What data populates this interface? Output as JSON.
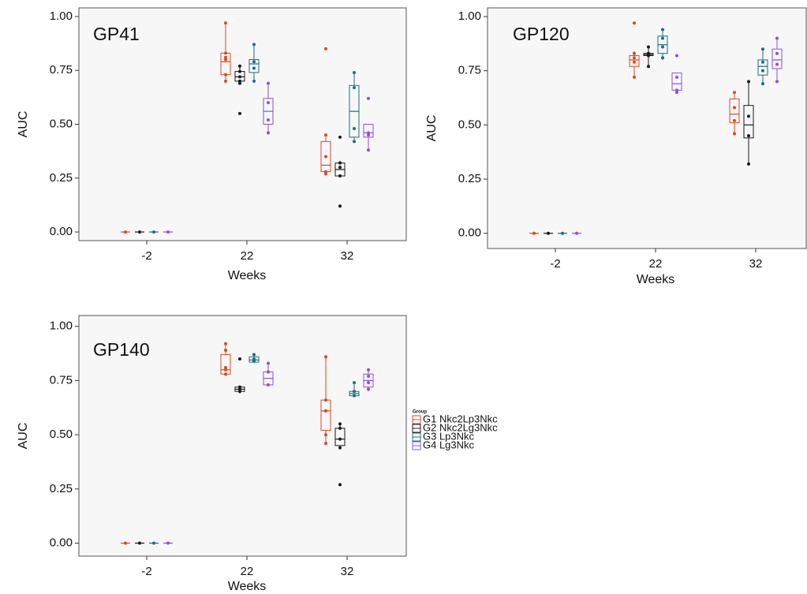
{
  "chart_data": [
    {
      "type": "box",
      "title": "GP41",
      "x_label": "Weeks",
      "y_label": "AUC",
      "categories": [
        "-2",
        "22",
        "32"
      ],
      "ylim": [
        -0.04,
        1.04
      ],
      "yticks": [
        {
          "value": 0,
          "label": "0.00"
        },
        {
          "value": 0.25,
          "label": "0.25"
        },
        {
          "value": 0.5,
          "label": "0.50"
        },
        {
          "value": 0.75,
          "label": "0.75"
        },
        {
          "value": 1,
          "label": "1.00"
        }
      ],
      "series": [
        {
          "name": "G1 Nkc2Lp3Nkc",
          "color": "#e0461f",
          "values": [
            {
              "min": 0,
              "q1": 0,
              "median": 0,
              "q3": 0,
              "max": 0,
              "points": [
                0
              ]
            },
            {
              "min": 0.69,
              "q1": 0.73,
              "median": 0.79,
              "q3": 0.83,
              "max": 0.97,
              "points": [
                0.97,
                0.83,
                0.81,
                0.8,
                0.73,
                0.7
              ]
            },
            {
              "min": 0.27,
              "q1": 0.28,
              "median": 0.31,
              "q3": 0.42,
              "max": 0.45,
              "points": [
                0.85,
                0.45,
                0.35,
                0.28,
                0.27
              ]
            }
          ]
        },
        {
          "name": "G2 Nkc2Lg3Nkc",
          "color": "#1a1a1a",
          "values": [
            {
              "min": 0,
              "q1": 0,
              "median": 0,
              "q3": 0,
              "max": 0,
              "points": [
                0
              ]
            },
            {
              "min": 0.69,
              "q1": 0.7,
              "median": 0.72,
              "q3": 0.745,
              "max": 0.77,
              "points": [
                0.77,
                0.745,
                0.72,
                0.7,
                0.69,
                0.55
              ]
            },
            {
              "min": 0.26,
              "q1": 0.26,
              "median": 0.29,
              "q3": 0.32,
              "max": 0.33,
              "points": [
                0.44,
                0.32,
                0.3,
                0.26,
                0.12
              ]
            }
          ]
        },
        {
          "name": "G3 Lp3Nkc",
          "color": "#1a6f80",
          "values": [
            {
              "min": 0,
              "q1": 0,
              "median": 0,
              "q3": 0,
              "max": 0,
              "points": [
                0
              ]
            },
            {
              "min": 0.7,
              "q1": 0.74,
              "median": 0.78,
              "q3": 0.8,
              "max": 0.87,
              "points": [
                0.87,
                0.79,
                0.76,
                0.7
              ]
            },
            {
              "min": 0.42,
              "q1": 0.44,
              "median": 0.56,
              "q3": 0.68,
              "max": 0.74,
              "points": [
                0.74,
                0.67,
                0.48,
                0.42
              ]
            }
          ]
        },
        {
          "name": "G4 Lg3Nkc",
          "color": "#8b4fe0",
          "values": [
            {
              "min": 0,
              "q1": 0,
              "median": 0,
              "q3": 0,
              "max": 0,
              "points": [
                0
              ]
            },
            {
              "min": 0.46,
              "q1": 0.5,
              "median": 0.56,
              "q3": 0.62,
              "max": 0.69,
              "points": [
                0.69,
                0.6,
                0.52,
                0.46
              ]
            },
            {
              "min": 0.38,
              "q1": 0.44,
              "median": 0.46,
              "q3": 0.5,
              "max": 0.5,
              "points": [
                0.62,
                0.46,
                0.45,
                0.38
              ]
            }
          ]
        }
      ]
    },
    {
      "type": "box",
      "title": "GP120",
      "x_label": "Weeks",
      "y_label": "AUC",
      "categories": [
        "-2",
        "22",
        "32"
      ],
      "ylim": [
        -0.07,
        1.04
      ],
      "yticks": [
        {
          "value": 0,
          "label": "0.00"
        },
        {
          "value": 0.25,
          "label": "0.25"
        },
        {
          "value": 0.5,
          "label": "0.50"
        },
        {
          "value": 0.75,
          "label": "0.75"
        },
        {
          "value": 1,
          "label": "1.00"
        }
      ],
      "series": [
        {
          "name": "G1 Nkc2Lp3Nkc",
          "color": "#e0461f",
          "values": [
            {
              "min": 0,
              "q1": 0,
              "median": 0,
              "q3": 0,
              "max": 0,
              "points": [
                0
              ]
            },
            {
              "min": 0.72,
              "q1": 0.77,
              "median": 0.8,
              "q3": 0.82,
              "max": 0.84,
              "points": [
                0.97,
                0.83,
                0.81,
                0.79,
                0.72
              ]
            },
            {
              "min": 0.45,
              "q1": 0.51,
              "median": 0.55,
              "q3": 0.62,
              "max": 0.65,
              "points": [
                0.65,
                0.58,
                0.52,
                0.46
              ]
            }
          ]
        },
        {
          "name": "G2 Nkc2Lg3Nkc",
          "color": "#1a1a1a",
          "values": [
            {
              "min": 0,
              "q1": 0,
              "median": 0,
              "q3": 0,
              "max": 0,
              "points": [
                0
              ]
            },
            {
              "min": 0.77,
              "q1": 0.82,
              "median": 0.825,
              "q3": 0.83,
              "max": 0.86,
              "points": [
                0.86,
                0.83,
                0.82,
                0.77
              ]
            },
            {
              "min": 0.32,
              "q1": 0.44,
              "median": 0.5,
              "q3": 0.59,
              "max": 0.7,
              "points": [
                0.7,
                0.54,
                0.45,
                0.32
              ]
            }
          ]
        },
        {
          "name": "G3 Lp3Nkc",
          "color": "#1a6f80",
          "values": [
            {
              "min": 0,
              "q1": 0,
              "median": 0,
              "q3": 0,
              "max": 0,
              "points": [
                0
              ]
            },
            {
              "min": 0.8,
              "q1": 0.83,
              "median": 0.87,
              "q3": 0.91,
              "max": 0.94,
              "points": [
                0.94,
                0.9,
                0.86,
                0.81
              ]
            },
            {
              "min": 0.69,
              "q1": 0.73,
              "median": 0.77,
              "q3": 0.8,
              "max": 0.85,
              "points": [
                0.85,
                0.79,
                0.75,
                0.69
              ]
            }
          ]
        },
        {
          "name": "G4 Lg3Nkc",
          "color": "#8b4fe0",
          "values": [
            {
              "min": 0,
              "q1": 0,
              "median": 0,
              "q3": 0,
              "max": 0,
              "points": [
                0
              ]
            },
            {
              "min": 0.65,
              "q1": 0.66,
              "median": 0.69,
              "q3": 0.74,
              "max": 0.74,
              "points": [
                0.82,
                0.72,
                0.66,
                0.65
              ]
            },
            {
              "min": 0.7,
              "q1": 0.76,
              "median": 0.8,
              "q3": 0.85,
              "max": 0.9,
              "points": [
                0.9,
                0.83,
                0.78,
                0.7
              ]
            }
          ]
        }
      ]
    },
    {
      "type": "box",
      "title": "GP140",
      "x_label": "Weeks",
      "y_label": "AUC",
      "categories": [
        "-2",
        "22",
        "32"
      ],
      "ylim": [
        -0.06,
        1.05
      ],
      "yticks": [
        {
          "value": 0,
          "label": "0.00"
        },
        {
          "value": 0.25,
          "label": "0.25"
        },
        {
          "value": 0.5,
          "label": "0.50"
        },
        {
          "value": 0.75,
          "label": "0.75"
        },
        {
          "value": 1,
          "label": "1.00"
        }
      ],
      "legend": {
        "title": "Group",
        "position": "right"
      },
      "series": [
        {
          "name": "G1 Nkc2Lp3Nkc",
          "color": "#e0461f",
          "values": [
            {
              "min": 0,
              "q1": 0,
              "median": 0,
              "q3": 0,
              "max": 0,
              "points": [
                0
              ]
            },
            {
              "min": 0.77,
              "q1": 0.78,
              "median": 0.8,
              "q3": 0.87,
              "max": 0.92,
              "points": [
                0.92,
                0.89,
                0.81,
                0.8,
                0.78
              ]
            },
            {
              "min": 0.46,
              "q1": 0.52,
              "median": 0.61,
              "q3": 0.66,
              "max": 0.86,
              "points": [
                0.86,
                0.66,
                0.61,
                0.61,
                0.5,
                0.46
              ]
            }
          ]
        },
        {
          "name": "G2 Nkc2Lg3Nkc",
          "color": "#1a1a1a",
          "values": [
            {
              "min": 0,
              "q1": 0,
              "median": 0,
              "q3": 0,
              "max": 0,
              "points": [
                0
              ]
            },
            {
              "min": 0.69,
              "q1": 0.7,
              "median": 0.71,
              "q3": 0.72,
              "max": 0.72,
              "points": [
                0.85,
                0.72,
                0.71,
                0.7
              ]
            },
            {
              "min": 0.44,
              "q1": 0.45,
              "median": 0.48,
              "q3": 0.53,
              "max": 0.55,
              "points": [
                0.55,
                0.53,
                0.48,
                0.44,
                0.27
              ]
            }
          ]
        },
        {
          "name": "G3 Lp3Nkc",
          "color": "#1a6f80",
          "values": [
            {
              "min": 0,
              "q1": 0,
              "median": 0,
              "q3": 0,
              "max": 0,
              "points": [
                0
              ]
            },
            {
              "min": 0.83,
              "q1": 0.835,
              "median": 0.845,
              "q3": 0.86,
              "max": 0.87,
              "points": [
                0.87,
                0.85,
                0.84
              ]
            },
            {
              "min": 0.68,
              "q1": 0.68,
              "median": 0.69,
              "q3": 0.7,
              "max": 0.74,
              "points": [
                0.74,
                0.7,
                0.68
              ]
            }
          ]
        },
        {
          "name": "G4 Lg3Nkc",
          "color": "#8b4fe0",
          "values": [
            {
              "min": 0,
              "q1": 0,
              "median": 0,
              "q3": 0,
              "max": 0,
              "points": [
                0
              ]
            },
            {
              "min": 0.73,
              "q1": 0.73,
              "median": 0.76,
              "q3": 0.79,
              "max": 0.83,
              "points": [
                0.83,
                0.79,
                0.73
              ]
            },
            {
              "min": 0.7,
              "q1": 0.72,
              "median": 0.75,
              "q3": 0.78,
              "max": 0.8,
              "points": [
                0.8,
                0.77,
                0.74,
                0.71
              ]
            }
          ]
        }
      ]
    }
  ]
}
